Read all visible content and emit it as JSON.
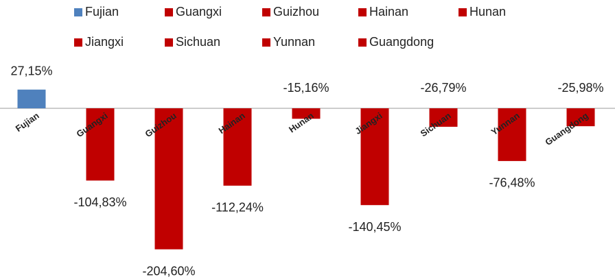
{
  "chart_data": {
    "type": "bar",
    "categories": [
      "Fujian",
      "Guangxi",
      "Guizhou",
      "Hainan",
      "Hunan",
      "Jiangxi",
      "Sichuan",
      "Yunnan",
      "Guangdong"
    ],
    "values": [
      27.15,
      -104.83,
      -204.6,
      -112.24,
      -15.16,
      -140.45,
      -26.79,
      -76.48,
      -25.98
    ],
    "value_labels": [
      "27,15%",
      "-104,83%",
      "-204,60%",
      "-112,24%",
      "-15,16%",
      "-140,45%",
      "-26,79%",
      "-76,48%",
      "-25,98%"
    ],
    "colors": [
      "#4f81bd",
      "#c00000",
      "#c00000",
      "#c00000",
      "#c00000",
      "#c00000",
      "#c00000",
      "#c00000",
      "#c00000"
    ],
    "legend": "top"
  }
}
